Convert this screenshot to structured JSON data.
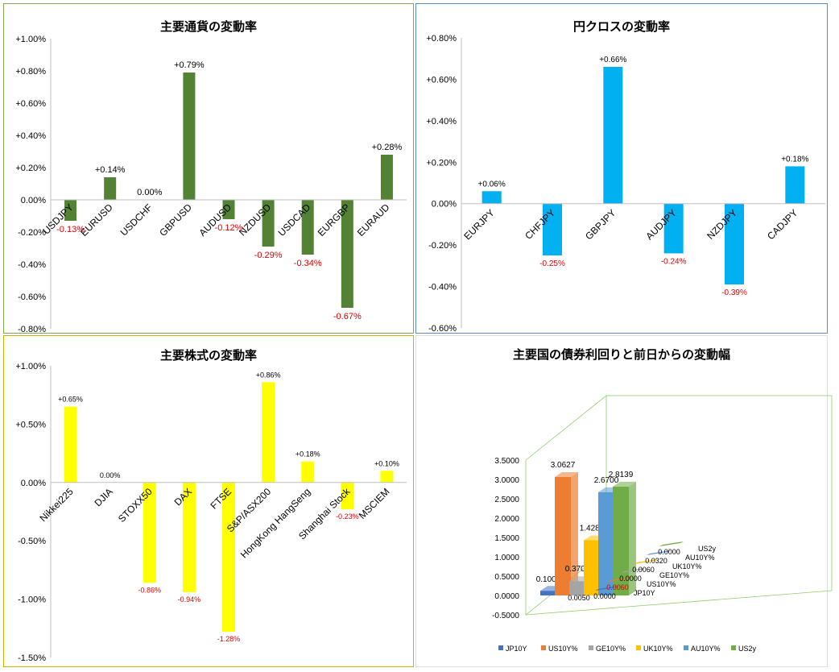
{
  "chart_data": [
    {
      "type": "bar",
      "title": "主要通貨の変動率",
      "categories": [
        "USDJPY",
        "EURUSD",
        "USDCHF",
        "GBPUSD",
        "AUDUSD",
        "NZDUSD",
        "USDCAD",
        "EURGBP",
        "EURAUD"
      ],
      "values": [
        -0.13,
        0.14,
        0.0,
        0.79,
        -0.12,
        -0.29,
        -0.34,
        -0.67,
        0.28
      ],
      "data_labels": [
        "-0.13%",
        "+0.14%",
        "0.00%",
        "+0.79%",
        "-0.12%",
        "-0.29%",
        "-0.34%",
        "-0.67%",
        "+0.28%"
      ],
      "ylim": [
        -0.8,
        1.0
      ],
      "yticks": [
        1.0,
        0.8,
        0.6,
        0.4,
        0.2,
        0.0,
        -0.2,
        -0.4,
        -0.6,
        -0.8
      ],
      "ytick_labels": [
        "+1.00%",
        "+0.80%",
        "+0.60%",
        "+0.40%",
        "+0.20%",
        "0.00%",
        "-0.20%",
        "-0.40%",
        "-0.60%",
        "-0.80%"
      ],
      "bar_color": "#548235",
      "negative_label_color": "#e00000",
      "grid": false
    },
    {
      "type": "bar",
      "title": "円クロスの変動率",
      "categories": [
        "EURJPY",
        "CHFJPY",
        "GBPJPY",
        "AUDJPY",
        "NZDJPY",
        "CADJPY"
      ],
      "values": [
        0.06,
        -0.25,
        0.66,
        -0.24,
        -0.39,
        0.18
      ],
      "data_labels": [
        "+0.06%",
        "-0.25%",
        "+0.66%",
        "-0.24%",
        "-0.39%",
        "+0.18%"
      ],
      "ylim": [
        -0.6,
        0.8
      ],
      "yticks": [
        0.8,
        0.6,
        0.4,
        0.2,
        0.0,
        -0.2,
        -0.4,
        -0.6
      ],
      "ytick_labels": [
        "+0.80%",
        "+0.60%",
        "+0.40%",
        "+0.20%",
        "0.00%",
        "-0.20%",
        "-0.40%",
        "-0.60%"
      ],
      "bar_color": "#00b0f0",
      "negative_label_color": "#e00000",
      "grid": false
    },
    {
      "type": "bar",
      "title": "主要株式の変動率",
      "categories": [
        "Nikkei225",
        "DJIA",
        "STOXX50",
        "DAX",
        "FTSE",
        "S&P/ASX200",
        "HongKong HangSeng",
        "Shanghai Stock",
        "MSCIEM"
      ],
      "values": [
        0.65,
        0.0,
        -0.86,
        -0.94,
        -1.28,
        0.86,
        0.18,
        -0.23,
        0.1
      ],
      "data_labels": [
        "+0.65%",
        "0.00%",
        "-0.86%",
        "-0.94%",
        "-1.28%",
        "+0.86%",
        "+0.18%",
        "-0.23%",
        "+0.10%"
      ],
      "ylim": [
        -1.5,
        1.0
      ],
      "yticks": [
        1.0,
        0.5,
        0.0,
        -0.5,
        -1.0,
        -1.5
      ],
      "ytick_labels": [
        "+1.00%",
        "+0.50%",
        "0.00%",
        "-0.50%",
        "-1.00%",
        "-1.50%"
      ],
      "bar_color": "#ffff00",
      "negative_label_color": "#e00000",
      "grid": false
    },
    {
      "type": "bar",
      "title": "主要国の債券利回りと前日からの変動幅",
      "series": [
        {
          "name": "JP10Y",
          "color": "#4472c4",
          "yield": 0.1,
          "yield_label": "0.1000",
          "change": 0.0,
          "change_label": "0.0000"
        },
        {
          "name": "US10Y%",
          "color": "#ed7d31",
          "yield": 3.0627,
          "yield_label": "3.0627",
          "change": 0.006,
          "change_label": "0.0060"
        },
        {
          "name": "GE10Y%",
          "color": "#a5a5a5",
          "yield": 0.37,
          "yield_label": "0.3700",
          "change": 0.0,
          "change_label": "0.0000"
        },
        {
          "name": "UK10Y%",
          "color": "#ffc000",
          "yield": 1.428,
          "yield_label": "1.4280",
          "change": 0.006,
          "change_label": "0.0060"
        },
        {
          "name": "AU10Y%",
          "color": "#5b9bd5",
          "yield": 2.67,
          "yield_label": "2.6700",
          "change": 0.032,
          "change_label": "0.0320"
        },
        {
          "name": "US2y",
          "color": "#70ad47",
          "yield": 2.8139,
          "yield_label": "2.8139",
          "change": 0.0,
          "change_label": "0.0000"
        }
      ],
      "partial_label": "0.0050",
      "ylim": [
        -0.5,
        3.5
      ],
      "yticks": [
        3.5,
        3.0,
        2.5,
        2.0,
        1.5,
        1.0,
        0.5,
        0.0,
        -0.5
      ],
      "ytick_labels": [
        "3.5000",
        "3.0000",
        "2.5000",
        "2.0000",
        "1.5000",
        "1.0000",
        "0.5000",
        "0.0000",
        "-0.5000"
      ],
      "legend_position": "bottom",
      "grid": false
    }
  ]
}
